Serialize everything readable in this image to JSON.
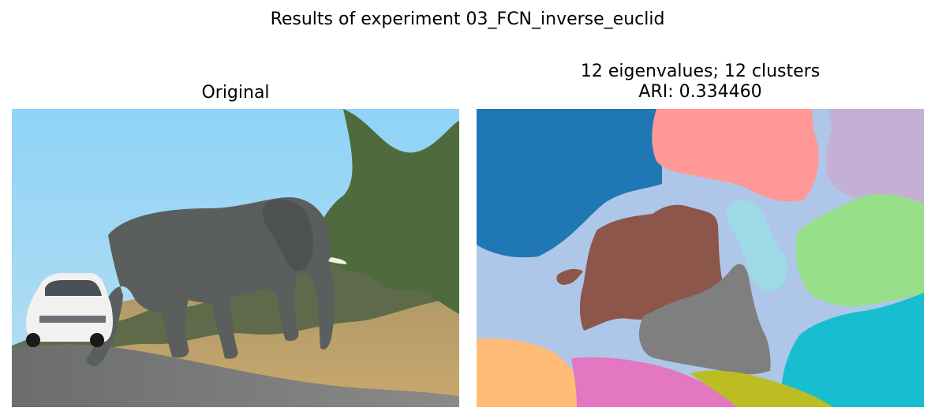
{
  "figure": {
    "title": "Results of experiment 03_FCN_inverse_euclid"
  },
  "original_panel": {
    "title": "Original"
  },
  "segmentation_panel": {
    "title_line_1": "12 eigenvalues; 12 clusters",
    "title_line_2": "ARI: 0.334460"
  },
  "colors": {
    "sky": "#87cdf0",
    "elephant": "#555a58",
    "road": "#6f7070",
    "grass": "#c9a66b",
    "cluster_blue": "#1f77b4",
    "cluster_light_blue": "#aec7e8",
    "cluster_brown": "#8c564b",
    "cluster_pink": "#ff9896",
    "cluster_lavender": "#c5b0d5",
    "cluster_green": "#98df8a",
    "cluster_cyan": "#17becf",
    "cluster_light_cyan": "#9edae5",
    "cluster_gray": "#7f7f7f",
    "cluster_orange": "#ffbb78",
    "cluster_magenta": "#e377c2",
    "cluster_olive": "#bcbd22"
  }
}
